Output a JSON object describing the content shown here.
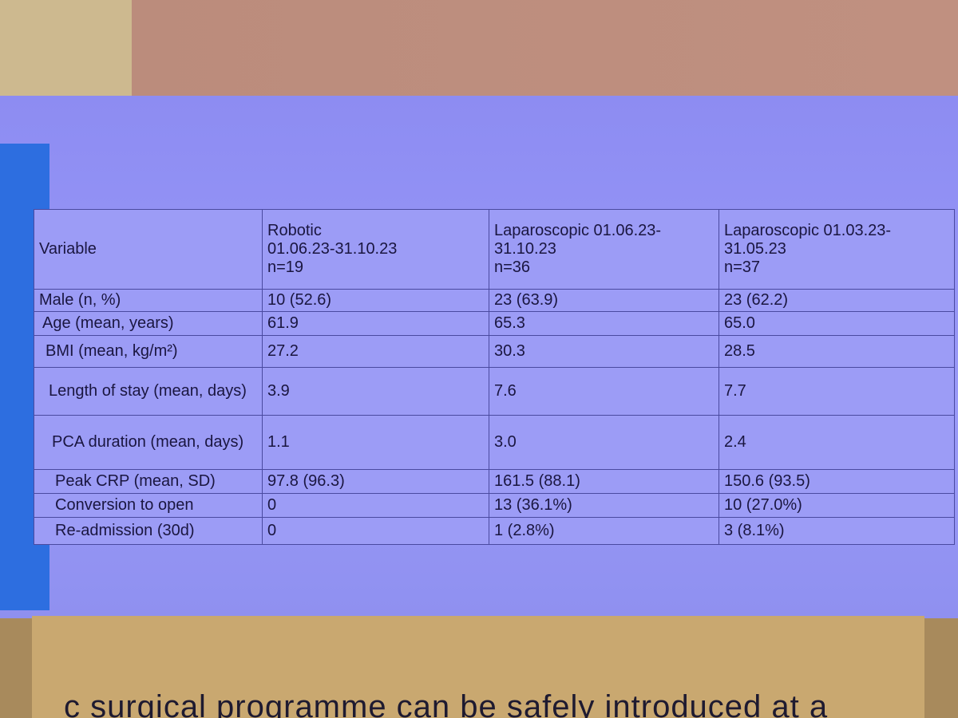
{
  "table": {
    "header": [
      [
        "Variable"
      ],
      [
        "Robotic",
        "01.06.23-31.10.23",
        "n=19"
      ],
      [
        "Laparoscopic 01.06.23-",
        "31.10.23",
        "n=36"
      ],
      [
        "Laparoscopic 01.03.23-",
        "31.05.23",
        "n=37"
      ]
    ],
    "rows": [
      [
        "Male (n, %)",
        "10 (52.6)",
        "23 (63.9)",
        "23 (62.2)"
      ],
      [
        "Age (mean, years)",
        "61.9",
        "65.3",
        "65.0"
      ],
      [
        "BMI (mean, kg/m²)",
        "27.2",
        "30.3",
        "28.5"
      ],
      [
        "Length of stay (mean, days)",
        "3.9",
        "7.6",
        "7.7"
      ],
      [
        "PCA duration (mean, days)",
        "1.1",
        "3.0",
        "2.4"
      ],
      [
        "Peak CRP (mean, SD)",
        "97.8 (96.3)",
        "161.5 (88.1)",
        "150.6 (93.5)"
      ],
      [
        "Conversion to open",
        "0",
        "13 (36.1%)",
        "10 (27.0%)"
      ],
      [
        "Re-admission (30d)",
        "0",
        "1 (2.8%)",
        "3 (8.1%)"
      ]
    ]
  },
  "footer_text": "c surgical programme can be safely introduced at a"
}
